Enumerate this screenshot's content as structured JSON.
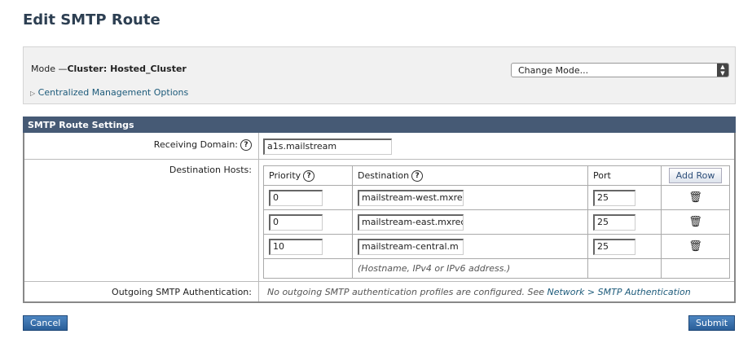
{
  "page_title": "Edit SMTP Route",
  "mode": {
    "label": "Mode —",
    "value": "Cluster: Hosted_Cluster",
    "change_mode": "Change Mode...",
    "cm_options": "Centralized Management Options"
  },
  "settings": {
    "header": "SMTP Route Settings",
    "receiving_domain_label": "Receiving Domain:",
    "receiving_domain_value": "a1s.mailstream",
    "destination_hosts_label": "Destination Hosts:",
    "columns": {
      "priority": "Priority",
      "destination": "Destination",
      "port": "Port",
      "add_row": "Add Row"
    },
    "rows": [
      {
        "priority": "0",
        "destination": "mailstream-west.mxre",
        "port": "25"
      },
      {
        "priority": "0",
        "destination": "mailstream-east.mxrec",
        "port": "25"
      },
      {
        "priority": "10",
        "destination": "mailstream-central.m",
        "port": "25"
      }
    ],
    "hint": "(Hostname, IPv4 or IPv6 address.)",
    "outgoing_auth_label": "Outgoing SMTP Authentication:",
    "outgoing_auth_text": "No outgoing SMTP authentication profiles are configured. See",
    "outgoing_auth_link": "Network > SMTP Authentication"
  },
  "buttons": {
    "cancel": "Cancel",
    "submit": "Submit"
  },
  "help_glyph": "?",
  "icons": {
    "trash": "trash-icon",
    "help": "help-icon",
    "triangle": "triangle-right-icon"
  }
}
